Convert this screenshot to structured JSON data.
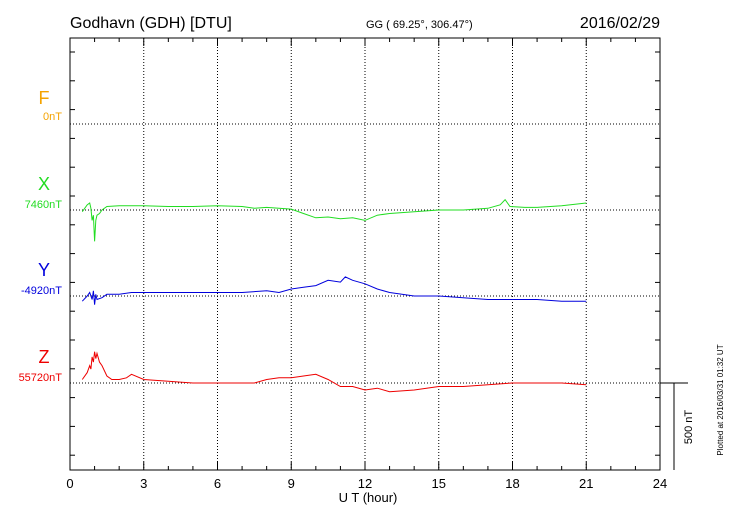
{
  "header": {
    "station": "Godhavn (GDH)  [DTU]",
    "coords": "GG ( 69.25°, 306.47°)",
    "date": "2016/02/29"
  },
  "side_note": "Plotted at 2016/03/31 01:32 UT",
  "scale_label": "500 nT",
  "chart_data": {
    "type": "line",
    "xlabel": "U T (hour)",
    "xlim": [
      0,
      24
    ],
    "xticks": [
      0,
      3,
      6,
      9,
      12,
      15,
      18,
      21,
      24
    ],
    "xtick_labels": [
      "0",
      "3",
      "6",
      "9",
      "12",
      "15",
      "18",
      "21",
      "24"
    ],
    "scale_bar_nT": 500,
    "grid": true,
    "series": [
      {
        "name": "F",
        "baseline_label": "0nT",
        "color": "#f5a300",
        "x": [],
        "y": []
      },
      {
        "name": "X",
        "baseline_label": "7460nT",
        "color": "#22dd22",
        "x": [
          0.5,
          0.7,
          0.8,
          0.85,
          0.9,
          0.95,
          1.0,
          1.05,
          1.1,
          1.2,
          1.3,
          1.5,
          2.0,
          2.5,
          3.0,
          4.0,
          5.0,
          6.0,
          7.0,
          7.5,
          8.0,
          8.5,
          9.0,
          9.5,
          10.0,
          10.5,
          11.0,
          11.5,
          12.0,
          12.5,
          13.0,
          14.0,
          15.0,
          16.0,
          17.0,
          17.5,
          17.7,
          17.9,
          18.5,
          19.0,
          20.0,
          21.0
        ],
        "y": [
          -10,
          30,
          40,
          10,
          -60,
          -30,
          -180,
          -60,
          -30,
          -20,
          0,
          20,
          25,
          25,
          25,
          20,
          20,
          25,
          20,
          10,
          15,
          10,
          5,
          -20,
          -45,
          -40,
          -50,
          -45,
          -60,
          -30,
          -20,
          -10,
          0,
          0,
          10,
          30,
          60,
          20,
          15,
          15,
          25,
          40
        ]
      },
      {
        "name": "Y",
        "baseline_label": "-4920nT",
        "color": "#0000dd",
        "x": [
          0.5,
          0.7,
          0.8,
          0.9,
          0.95,
          1.0,
          1.05,
          1.1,
          1.3,
          1.5,
          2.0,
          2.5,
          3.0,
          4.0,
          5.0,
          6.0,
          7.0,
          8.0,
          8.5,
          9.0,
          9.5,
          10.0,
          10.5,
          11.0,
          11.2,
          11.5,
          12.0,
          12.5,
          13.0,
          14.0,
          15.0,
          16.0,
          17.0,
          18.0,
          19.0,
          20.0,
          21.0
        ],
        "y": [
          -30,
          0,
          20,
          -20,
          30,
          -50,
          10,
          -20,
          -10,
          10,
          10,
          20,
          20,
          20,
          20,
          20,
          20,
          30,
          20,
          40,
          50,
          60,
          90,
          80,
          110,
          90,
          70,
          40,
          20,
          0,
          0,
          -10,
          -20,
          -20,
          -20,
          -30,
          -30
        ]
      },
      {
        "name": "Z",
        "baseline_label": "55720nT",
        "color": "#ee0000",
        "x": [
          0.5,
          0.7,
          0.8,
          0.85,
          0.9,
          0.95,
          1.0,
          1.05,
          1.1,
          1.2,
          1.3,
          1.5,
          1.7,
          2.0,
          2.3,
          2.5,
          3.0,
          4.0,
          5.0,
          6.0,
          7.0,
          7.5,
          8.0,
          8.5,
          9.0,
          9.5,
          10.0,
          10.5,
          11.0,
          11.5,
          12.0,
          12.5,
          13.0,
          14.0,
          15.0,
          16.0,
          17.0,
          18.0,
          19.0,
          20.0,
          21.0
        ],
        "y": [
          20,
          60,
          100,
          80,
          150,
          120,
          180,
          140,
          170,
          120,
          100,
          40,
          20,
          20,
          30,
          50,
          20,
          10,
          0,
          0,
          0,
          0,
          20,
          30,
          30,
          40,
          50,
          20,
          -20,
          -20,
          -40,
          -30,
          -50,
          -40,
          -20,
          -20,
          -10,
          0,
          0,
          0,
          -10
        ]
      }
    ]
  }
}
